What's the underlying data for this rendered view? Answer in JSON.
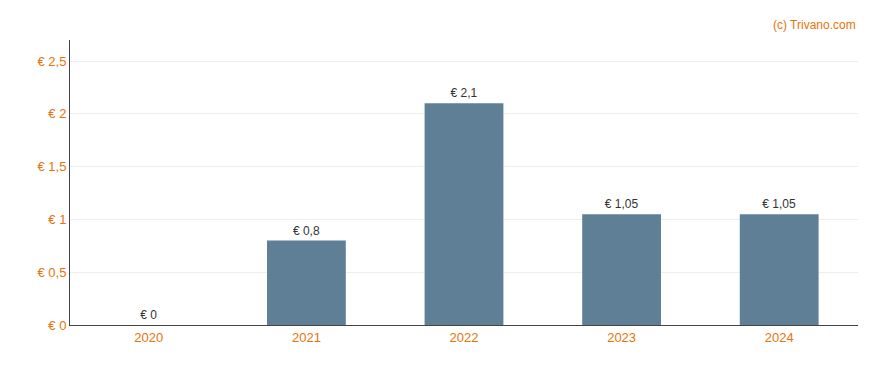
{
  "chart_data": {
    "type": "bar",
    "categories": [
      "2020",
      "2021",
      "2022",
      "2023",
      "2024"
    ],
    "values": [
      0.0,
      0.8,
      2.1,
      1.05,
      1.05
    ],
    "value_labels": [
      "€ 0",
      "€ 0,8",
      "€ 2,1",
      "€ 1,05",
      "€ 1,05"
    ],
    "data_labels": true,
    "color": "#5f7f96",
    "ylim": [
      0,
      2.7
    ],
    "yticks": [
      {
        "value": 0,
        "label": "€ 0"
      },
      {
        "value": 0.5,
        "label": "€ 0,5"
      },
      {
        "value": 1.0,
        "label": "€ 1"
      },
      {
        "value": 1.5,
        "label": "€ 1,5"
      },
      {
        "value": 2.0,
        "label": "€ 2"
      },
      {
        "value": 2.5,
        "label": "€ 2,5"
      }
    ],
    "grid": true,
    "annotations": [
      "(c) Trivano.com"
    ]
  }
}
